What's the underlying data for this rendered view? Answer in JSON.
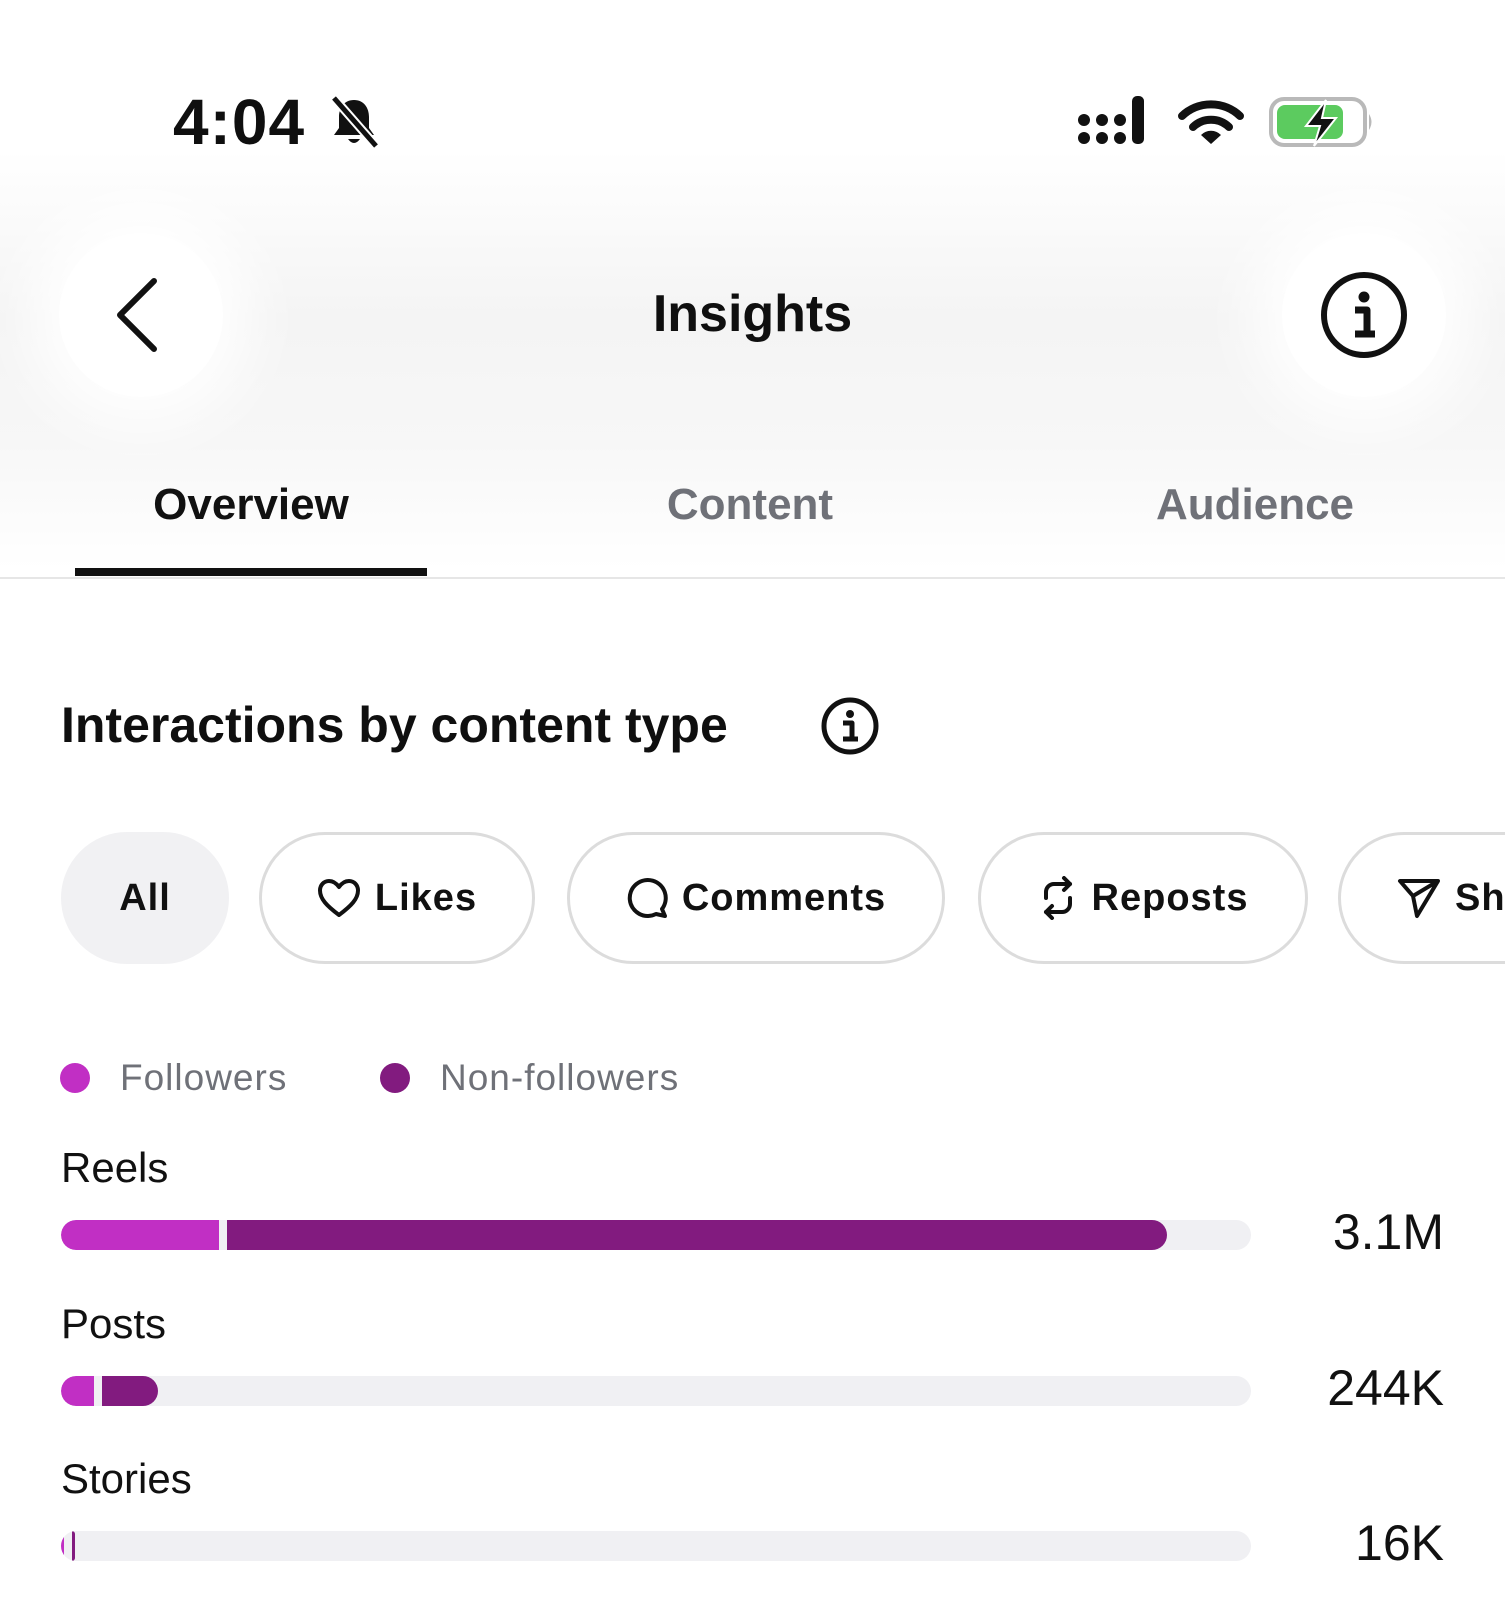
{
  "status_bar": {
    "time": "4:04"
  },
  "header": {
    "title": "Insights"
  },
  "tabs": [
    {
      "label": "Overview",
      "active": true
    },
    {
      "label": "Content",
      "active": false
    },
    {
      "label": "Audience",
      "active": false
    }
  ],
  "section": {
    "title": "Interactions by content type"
  },
  "filters": [
    {
      "label": "All",
      "icon": "none",
      "selected": true
    },
    {
      "label": "Likes",
      "icon": "heart-icon",
      "selected": false
    },
    {
      "label": "Comments",
      "icon": "comment-icon",
      "selected": false
    },
    {
      "label": "Reposts",
      "icon": "repost-icon",
      "selected": false
    },
    {
      "label": "Sh",
      "icon": "share-icon",
      "selected": false
    }
  ],
  "legend": {
    "followers": {
      "label": "Followers",
      "color": "#c12fc4"
    },
    "non_followers": {
      "label": "Non-followers",
      "color": "#821b7f"
    }
  },
  "chart_data": {
    "type": "bar",
    "categories": [
      "Reels",
      "Posts",
      "Stories"
    ],
    "value_labels": [
      "3.1M",
      "244K",
      "16K"
    ],
    "series": [
      {
        "name": "Followers",
        "values": [
          0.133,
          0.028,
          0.002
        ]
      },
      {
        "name": "Non-followers",
        "values": [
          0.79,
          0.047,
          0.002
        ]
      }
    ]
  }
}
